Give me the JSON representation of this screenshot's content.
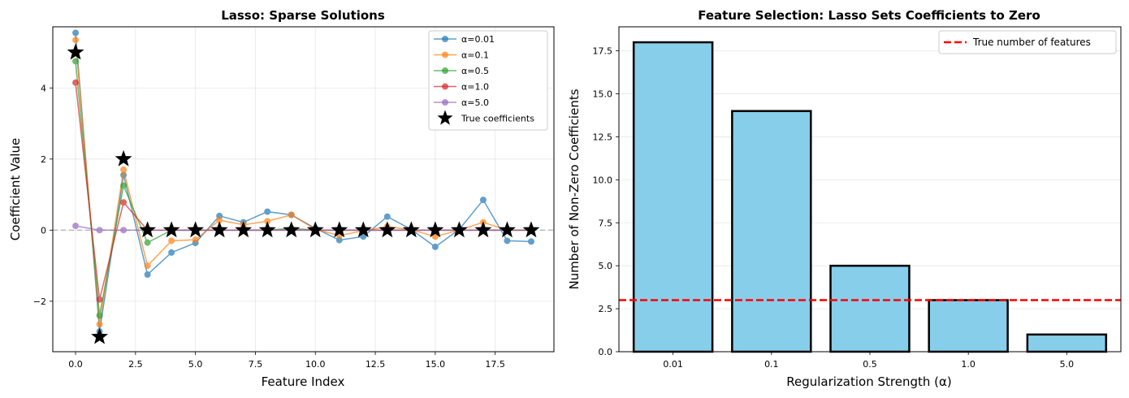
{
  "colors": {
    "alpha_0_01": "#1f77b4",
    "alpha_0_1": "#ff7f0e",
    "alpha_0_5": "#2ca02c",
    "alpha_1_0": "#d62728",
    "alpha_5_0": "#9467bd",
    "true_coef": "#000000",
    "bar_fill": "#87ceeb",
    "ref_line": "#ff0000"
  },
  "chart_data": [
    {
      "type": "line",
      "title": "Lasso: Sparse Solutions",
      "xlabel": "Feature Index",
      "ylabel": "Coefficient Value",
      "xlim": [
        -0.95,
        19.95
      ],
      "ylim": [
        -3.42,
        5.72
      ],
      "xticks": [
        0,
        2.5,
        5,
        7.5,
        10,
        12.5,
        15,
        17.5
      ],
      "xtick_labels": [
        "0.0",
        "2.5",
        "5.0",
        "7.5",
        "10.0",
        "12.5",
        "15.0",
        "17.5"
      ],
      "yticks": [
        -2,
        0,
        2,
        4
      ],
      "ytick_labels": [
        "−2",
        "0",
        "2",
        "4"
      ],
      "grid": true,
      "legend_position": "top-right",
      "x": [
        0,
        1,
        2,
        3,
        4,
        5,
        6,
        7,
        8,
        9,
        10,
        11,
        12,
        13,
        14,
        15,
        16,
        17,
        18,
        19
      ],
      "series": [
        {
          "name": "α=0.01",
          "values": [
            5.55,
            -2.85,
            1.55,
            -1.25,
            -0.63,
            -0.36,
            0.4,
            0.22,
            0.52,
            0.43,
            0.05,
            -0.28,
            -0.18,
            0.38,
            0.02,
            -0.47,
            0.02,
            0.85,
            -0.3,
            -0.32
          ]
        },
        {
          "name": "α=0.1",
          "values": [
            5.35,
            -2.65,
            1.7,
            -1.0,
            -0.3,
            -0.27,
            0.28,
            0.15,
            0.25,
            0.43,
            0.02,
            -0.15,
            -0.02,
            0.1,
            0.01,
            -0.18,
            0.0,
            0.22,
            0.0,
            0.0
          ]
        },
        {
          "name": "α=0.5",
          "values": [
            4.75,
            -2.4,
            1.25,
            -0.35,
            0.0,
            0.0,
            0.0,
            0.0,
            0.0,
            0.05,
            0.0,
            0.0,
            0.0,
            0.0,
            0.0,
            0.0,
            0.0,
            0.0,
            0.0,
            0.0
          ]
        },
        {
          "name": "α=1.0",
          "values": [
            4.15,
            -1.95,
            0.78,
            0.0,
            0.0,
            0.0,
            0.0,
            0.0,
            0.0,
            0.0,
            0.0,
            0.0,
            0.0,
            0.0,
            0.0,
            0.0,
            0.0,
            0.0,
            0.0,
            0.0
          ]
        },
        {
          "name": "α=5.0",
          "values": [
            0.12,
            0.0,
            0.0,
            0.0,
            0.0,
            0.0,
            0.0,
            0.0,
            0.0,
            0.0,
            0.0,
            0.0,
            0.0,
            0.0,
            0.0,
            0.0,
            0.0,
            0.0,
            0.0,
            0.0
          ]
        }
      ],
      "true_coefficients": {
        "name": "True coefficients",
        "values": [
          5,
          -3,
          2,
          0,
          0,
          0,
          0,
          0,
          0,
          0,
          0,
          0,
          0,
          0,
          0,
          0,
          0,
          0,
          0,
          0
        ]
      }
    },
    {
      "type": "bar",
      "title": "Feature Selection: Lasso Sets Coefficients to Zero",
      "xlabel": "Regularization Strength (α)",
      "ylabel": "Number of Non-Zero Coefficients",
      "categories": [
        "0.01",
        "0.1",
        "0.5",
        "1.0",
        "5.0"
      ],
      "values": [
        18,
        14,
        5,
        3,
        1
      ],
      "ylim": [
        0,
        18.9
      ],
      "yticks": [
        0,
        2.5,
        5,
        7.5,
        10,
        12.5,
        15,
        17.5
      ],
      "ytick_labels": [
        "0.0",
        "2.5",
        "5.0",
        "7.5",
        "10.0",
        "12.5",
        "15.0",
        "17.5"
      ],
      "grid": true,
      "legend_position": "top-right",
      "reference_line": {
        "name": "True number of features",
        "value": 3
      }
    }
  ]
}
